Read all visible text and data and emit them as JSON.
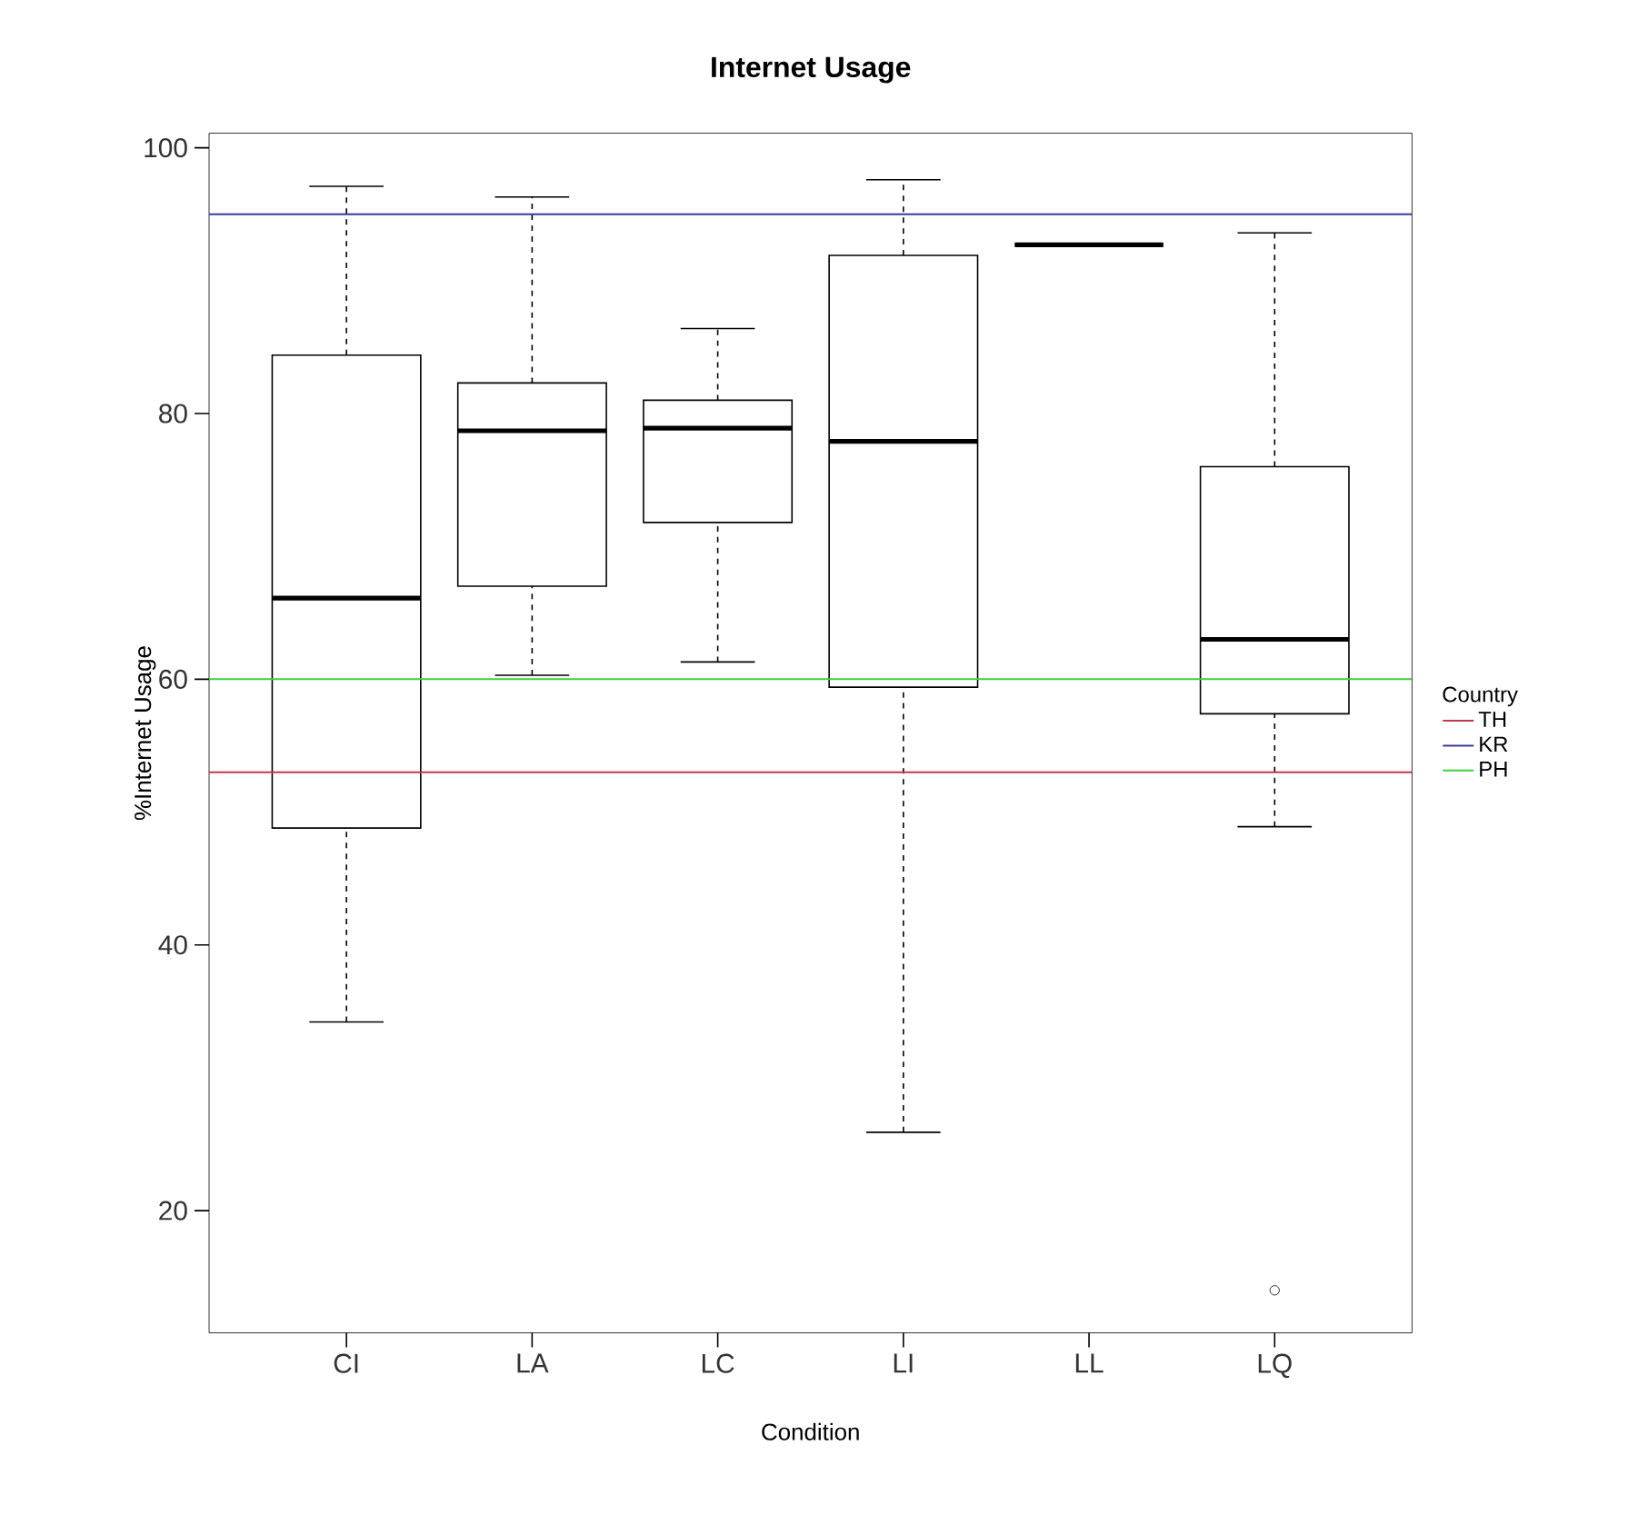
{
  "chart_data": {
    "type": "box",
    "title": "Internet Usage",
    "xlabel": "Condition",
    "ylabel": "%Internet Usage",
    "legend_title": "Country",
    "legend": "right",
    "categories": [
      "CI",
      "LA",
      "LC",
      "LI",
      "LL",
      "LQ"
    ],
    "boxes": [
      {
        "low": 34.2,
        "q1": 48.8,
        "median": 66.1,
        "q3": 84.4,
        "high": 97.1
      },
      {
        "low": 60.3,
        "q1": 67.0,
        "median": 78.7,
        "q3": 82.3,
        "high": 96.3
      },
      {
        "low": 61.3,
        "q1": 71.8,
        "median": 78.9,
        "q3": 81.0,
        "high": 86.4
      },
      {
        "low": 25.9,
        "q1": 59.4,
        "median": 77.9,
        "q3": 91.9,
        "high": 97.6
      },
      {
        "low": 92.7,
        "q1": 92.7,
        "median": 92.7,
        "q3": 92.7,
        "high": 92.7
      },
      {
        "low": 48.9,
        "q1": 57.4,
        "median": 63.0,
        "q3": 76.0,
        "high": 93.6,
        "outliers": [
          14.0
        ]
      }
    ],
    "ylim": [
      10.8,
      101.1
    ],
    "yticks": [
      20,
      40,
      60,
      80,
      100
    ],
    "ref_lines": [
      {
        "axis": "y",
        "value": 53,
        "label": "TH",
        "color": "#c0394b"
      },
      {
        "axis": "y",
        "value": 95,
        "label": "KR",
        "color": "#3a3a9e"
      },
      {
        "axis": "y",
        "value": 60,
        "label": "PH",
        "color": "#3ecf3e"
      }
    ]
  }
}
